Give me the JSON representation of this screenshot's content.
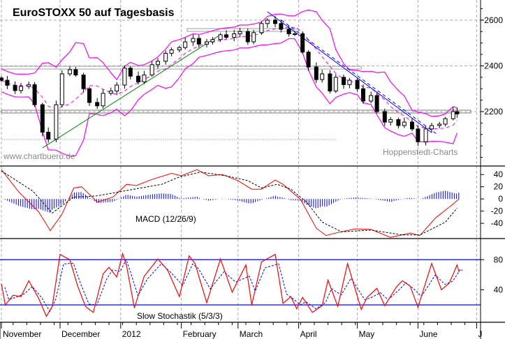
{
  "chart_data": [
    {
      "type": "candlestick",
      "title": "EuroSTOXX 50 auf Tagesbasis",
      "watermarks": [
        "www.chartbuero.de",
        "Hoppenstedt-Charts"
      ],
      "ylim": [
        1962,
        2688
      ],
      "yticks": [
        2200,
        2400,
        2600
      ],
      "grid": true,
      "colors": {
        "bull": "#ffffff",
        "bear": "#000000",
        "bollinger": "#ff00ff",
        "uptrend": "#008000",
        "downtrend": "#0000ff",
        "level": "#708070",
        "support": "#b0b0ff"
      },
      "indicators": [
        "Bollinger Bands"
      ],
      "close": [
        [
          "2011-11-01",
          2337
        ],
        [
          "2011-11-04",
          2315
        ],
        [
          "2011-11-08",
          2292
        ],
        [
          "2011-11-11",
          2310
        ],
        [
          "2011-11-15",
          2318
        ],
        [
          "2011-11-18",
          2230
        ],
        [
          "2011-11-22",
          2110
        ],
        [
          "2011-11-25",
          2080
        ],
        [
          "2011-11-29",
          2230
        ],
        [
          "2011-12-02",
          2365
        ],
        [
          "2011-12-06",
          2383
        ],
        [
          "2011-12-09",
          2360
        ],
        [
          "2011-12-13",
          2300
        ],
        [
          "2011-12-16",
          2240
        ],
        [
          "2011-12-20",
          2225
        ],
        [
          "2011-12-23",
          2280
        ],
        [
          "2011-12-27",
          2290
        ],
        [
          "2011-12-30",
          2316
        ],
        [
          "2012-01-03",
          2390
        ],
        [
          "2012-01-06",
          2355
        ],
        [
          "2012-01-10",
          2330
        ],
        [
          "2012-01-13",
          2360
        ],
        [
          "2012-01-17",
          2405
        ],
        [
          "2012-01-20",
          2420
        ],
        [
          "2012-01-24",
          2455
        ],
        [
          "2012-01-27",
          2470
        ],
        [
          "2012-01-31",
          2480
        ],
        [
          "2012-02-03",
          2505
        ],
        [
          "2012-02-07",
          2520
        ],
        [
          "2012-02-10",
          2495
        ],
        [
          "2012-02-14",
          2505
        ],
        [
          "2012-02-17",
          2515
        ],
        [
          "2012-02-21",
          2536
        ],
        [
          "2012-02-24",
          2525
        ],
        [
          "2012-02-28",
          2540
        ],
        [
          "2012-03-02",
          2550
        ],
        [
          "2012-03-06",
          2505
        ],
        [
          "2012-03-09",
          2545
        ],
        [
          "2012-03-13",
          2585
        ],
        [
          "2012-03-16",
          2600
        ],
        [
          "2012-03-20",
          2585
        ],
        [
          "2012-03-23",
          2560
        ],
        [
          "2012-03-27",
          2540
        ],
        [
          "2012-03-30",
          2540
        ],
        [
          "2012-04-03",
          2460
        ],
        [
          "2012-04-06",
          2395
        ],
        [
          "2012-04-10",
          2340
        ],
        [
          "2012-04-13",
          2365
        ],
        [
          "2012-04-17",
          2290
        ],
        [
          "2012-04-20",
          2350
        ],
        [
          "2012-04-24",
          2318
        ],
        [
          "2012-04-27",
          2337
        ],
        [
          "2012-05-01",
          2300
        ],
        [
          "2012-05-04",
          2246
        ],
        [
          "2012-05-08",
          2270
        ],
        [
          "2012-05-11",
          2200
        ],
        [
          "2012-05-15",
          2154
        ],
        [
          "2012-05-18",
          2165
        ],
        [
          "2012-05-22",
          2139
        ],
        [
          "2012-05-25",
          2154
        ],
        [
          "2012-05-29",
          2124
        ],
        [
          "2012-06-01",
          2068
        ],
        [
          "2012-06-05",
          2124
        ],
        [
          "2012-06-08",
          2139
        ],
        [
          "2012-06-12",
          2145
        ],
        [
          "2012-06-15",
          2169
        ],
        [
          "2012-06-19",
          2200
        ],
        [
          "2012-06-21",
          2190
        ]
      ],
      "trendlines": [
        {
          "color": "#008000",
          "from": [
            "2011-11-22",
            2041
          ],
          "to": [
            "2012-02-21",
            2536
          ]
        },
        {
          "color": "#0000ff",
          "from": [
            "2012-03-16",
            2637
          ],
          "to": [
            "2012-06-08",
            2108
          ]
        }
      ],
      "levels": [
        {
          "value": 2200,
          "from": "2011-11-01",
          "to": "2012-06-28",
          "color": "#708070"
        },
        {
          "value": 2392,
          "from": "2011-11-01",
          "to": "2012-05-03",
          "color": "#a0a0a0"
        },
        {
          "value": 2557,
          "from": "2012-02-04",
          "to": "2012-04-01",
          "color": "#a0a0a0"
        },
        {
          "value": 2078,
          "from": "2011-11-01",
          "to": "2012-04-20",
          "color": "#b0b0ff"
        }
      ]
    },
    {
      "type": "line",
      "label": "MACD (12/26/9)",
      "ylim": [
        -65,
        54
      ],
      "yticks": [
        40,
        20,
        0,
        -20,
        -40
      ],
      "series": [
        {
          "color": "#ff0000",
          "style": "solid",
          "points": [
            [
              "2011-11-01",
              48
            ],
            [
              "2011-11-10",
              11
            ],
            [
              "2011-11-20",
              -21
            ],
            [
              "2011-11-26",
              -52
            ],
            [
              "2011-12-02",
              -25
            ],
            [
              "2011-12-08",
              18
            ],
            [
              "2011-12-12",
              20
            ],
            [
              "2011-12-20",
              -5
            ],
            [
              "2011-12-28",
              3
            ],
            [
              "2012-01-04",
              24
            ],
            [
              "2012-01-09",
              22
            ],
            [
              "2012-01-17",
              32
            ],
            [
              "2012-01-27",
              42
            ],
            [
              "2012-02-01",
              38
            ],
            [
              "2012-02-09",
              48
            ],
            [
              "2012-02-15",
              38
            ],
            [
              "2012-02-22",
              40
            ],
            [
              "2012-03-01",
              30
            ],
            [
              "2012-03-08",
              16
            ],
            [
              "2012-03-13",
              16
            ],
            [
              "2012-03-20",
              31
            ],
            [
              "2012-03-24",
              24
            ],
            [
              "2012-04-02",
              -1
            ],
            [
              "2012-04-10",
              -48
            ],
            [
              "2012-04-15",
              -60
            ],
            [
              "2012-04-21",
              -55
            ],
            [
              "2012-04-30",
              -49
            ],
            [
              "2012-05-08",
              -50
            ],
            [
              "2012-05-18",
              -63
            ],
            [
              "2012-05-28",
              -56
            ],
            [
              "2012-06-02",
              -60
            ],
            [
              "2012-06-10",
              -31
            ],
            [
              "2012-06-18",
              -11
            ],
            [
              "2012-06-22",
              0
            ]
          ]
        },
        {
          "color": "#000000",
          "style": "dashed",
          "points": [
            [
              "2011-11-01",
              46
            ],
            [
              "2011-11-17",
              13
            ],
            [
              "2011-11-27",
              -23
            ],
            [
              "2011-12-08",
              3
            ],
            [
              "2011-12-20",
              5
            ],
            [
              "2012-01-06",
              15
            ],
            [
              "2012-01-22",
              24
            ],
            [
              "2012-01-31",
              36
            ],
            [
              "2012-02-11",
              44
            ],
            [
              "2012-02-24",
              38
            ],
            [
              "2012-03-06",
              30
            ],
            [
              "2012-03-13",
              18
            ],
            [
              "2012-03-21",
              24
            ],
            [
              "2012-03-28",
              16
            ],
            [
              "2012-04-05",
              -5
            ],
            [
              "2012-04-13",
              -38
            ],
            [
              "2012-04-23",
              -54
            ],
            [
              "2012-05-08",
              -51
            ],
            [
              "2012-05-24",
              -59
            ],
            [
              "2012-06-02",
              -59
            ],
            [
              "2012-06-15",
              -38
            ],
            [
              "2012-06-21",
              -15
            ]
          ]
        }
      ],
      "histogram_color": "#0000ff"
    },
    {
      "type": "line",
      "label": "Slow Stochastik (5/3/3)",
      "ylim": [
        -3,
        108
      ],
      "yticks": [
        80,
        40
      ],
      "bands": [
        80,
        20
      ],
      "band_color": "#0000ff",
      "series": [
        {
          "color": "#ff0000",
          "style": "solid",
          "points": [
            [
              "2011-11-01",
              48
            ],
            [
              "2011-11-03",
              20
            ],
            [
              "2011-11-07",
              33
            ],
            [
              "2011-11-11",
              31
            ],
            [
              "2011-11-15",
              52
            ],
            [
              "2011-11-20",
              29
            ],
            [
              "2011-11-24",
              5
            ],
            [
              "2011-11-27",
              18
            ],
            [
              "2011-12-01",
              87
            ],
            [
              "2011-12-06",
              80
            ],
            [
              "2011-12-10",
              45
            ],
            [
              "2011-12-14",
              18
            ],
            [
              "2011-12-18",
              10
            ],
            [
              "2011-12-23",
              61
            ],
            [
              "2011-12-26",
              70
            ],
            [
              "2011-12-30",
              57
            ],
            [
              "2012-01-02",
              88
            ],
            [
              "2012-01-04",
              72
            ],
            [
              "2012-01-08",
              16
            ],
            [
              "2012-01-13",
              58
            ],
            [
              "2012-01-20",
              81
            ],
            [
              "2012-01-25",
              66
            ],
            [
              "2012-01-31",
              31
            ],
            [
              "2012-02-05",
              85
            ],
            [
              "2012-02-08",
              75
            ],
            [
              "2012-02-14",
              23
            ],
            [
              "2012-02-21",
              81
            ],
            [
              "2012-02-27",
              37
            ],
            [
              "2012-03-05",
              73
            ],
            [
              "2012-03-08",
              20
            ],
            [
              "2012-03-13",
              77
            ],
            [
              "2012-03-20",
              87
            ],
            [
              "2012-03-24",
              22
            ],
            [
              "2012-03-28",
              31
            ],
            [
              "2012-03-31",
              15
            ],
            [
              "2012-04-03",
              30
            ],
            [
              "2012-04-08",
              10
            ],
            [
              "2012-04-13",
              19
            ],
            [
              "2012-04-16",
              53
            ],
            [
              "2012-04-21",
              18
            ],
            [
              "2012-04-26",
              75
            ],
            [
              "2012-05-03",
              14
            ],
            [
              "2012-05-06",
              30
            ],
            [
              "2012-05-11",
              42
            ],
            [
              "2012-05-15",
              19
            ],
            [
              "2012-05-21",
              44
            ],
            [
              "2012-05-24",
              52
            ],
            [
              "2012-05-28",
              45
            ],
            [
              "2012-06-01",
              17
            ],
            [
              "2012-06-08",
              75
            ],
            [
              "2012-06-13",
              40
            ],
            [
              "2012-06-17",
              49
            ],
            [
              "2012-06-21",
              73
            ],
            [
              "2012-06-22",
              64
            ]
          ]
        }
      ],
      "signal_color": "#0000ff"
    }
  ],
  "x_axis": {
    "months": [
      {
        "label": "November",
        "date": "2011-11-01"
      },
      {
        "label": "December",
        "date": "2011-12-01"
      },
      {
        "label": "2012",
        "date": "2012-01-01"
      },
      {
        "label": "February",
        "date": "2012-02-01"
      },
      {
        "label": "March",
        "date": "2012-03-01"
      },
      {
        "label": "April",
        "date": "2012-04-01"
      },
      {
        "label": "May",
        "date": "2012-05-01"
      },
      {
        "label": "June",
        "date": "2012-06-01"
      },
      {
        "label": "J",
        "date": "2012-07-01"
      }
    ]
  }
}
